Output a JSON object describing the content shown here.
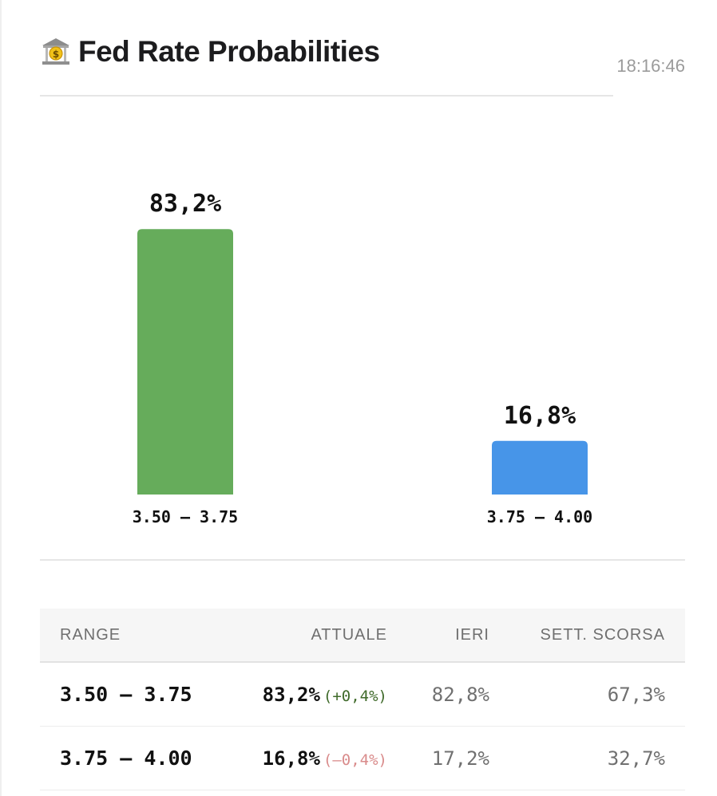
{
  "header": {
    "title": "Fed Rate Probabilities",
    "timestamp": "18:16:46",
    "icon": "bank-icon"
  },
  "chart_data": {
    "type": "bar",
    "categories": [
      "3.50 – 3.75",
      "3.75 – 4.00"
    ],
    "values": [
      83.2,
      16.8
    ],
    "value_labels": [
      "83,2%",
      "16,8%"
    ],
    "colors": [
      "#66ac5b",
      "#4795e8"
    ],
    "unit": "%",
    "ylim": [
      0,
      100
    ],
    "grid": false
  },
  "table": {
    "headers": [
      "RANGE",
      "ATTUALE",
      "IERI",
      "SETT. SCORSA"
    ],
    "rows": [
      {
        "range": "3.50 – 3.75",
        "current": "83,2%",
        "delta": "(+0,4%)",
        "delta_sign": "pos",
        "yesterday": "82,8%",
        "last_week": "67,3%"
      },
      {
        "range": "3.75 – 4.00",
        "current": "16,8%",
        "delta": "(–0,4%)",
        "delta_sign": "neg",
        "yesterday": "17,2%",
        "last_week": "32,7%"
      }
    ]
  }
}
